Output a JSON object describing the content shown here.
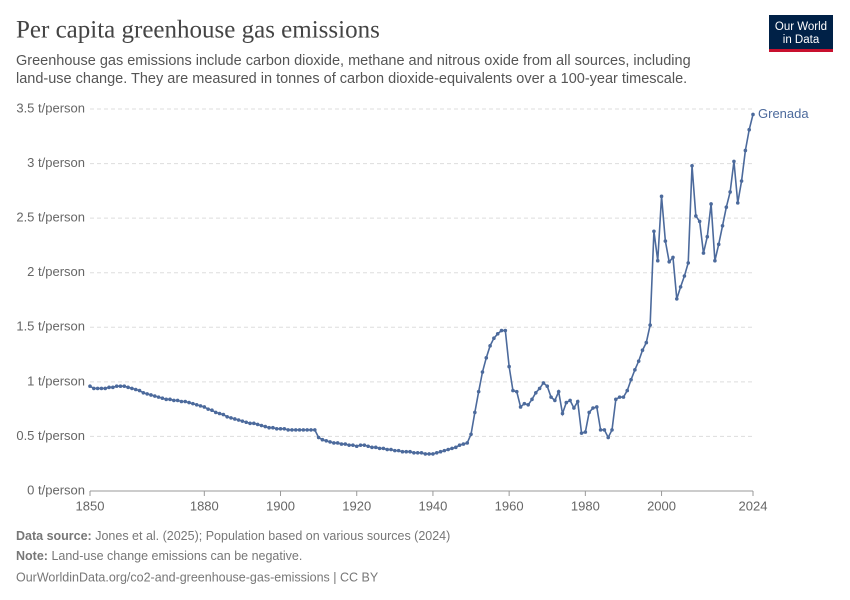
{
  "chart_data": {
    "type": "line",
    "title": "Per capita greenhouse gas emissions",
    "subtitle": [
      "Greenhouse gas emissions include carbon dioxide, methane and nitrous oxide from all sources, including",
      "land-use change. They are measured in tonnes of carbon dioxide-equivalents over a 100-year timescale."
    ],
    "x": [
      1850,
      1851,
      1852,
      1853,
      1854,
      1855,
      1856,
      1857,
      1858,
      1859,
      1860,
      1861,
      1862,
      1863,
      1864,
      1865,
      1866,
      1867,
      1868,
      1869,
      1870,
      1871,
      1872,
      1873,
      1874,
      1875,
      1876,
      1877,
      1878,
      1879,
      1880,
      1881,
      1882,
      1883,
      1884,
      1885,
      1886,
      1887,
      1888,
      1889,
      1890,
      1891,
      1892,
      1893,
      1894,
      1895,
      1896,
      1897,
      1898,
      1899,
      1900,
      1901,
      1902,
      1903,
      1904,
      1905,
      1906,
      1907,
      1908,
      1909,
      1910,
      1911,
      1912,
      1913,
      1914,
      1915,
      1916,
      1917,
      1918,
      1919,
      1920,
      1921,
      1922,
      1923,
      1924,
      1925,
      1926,
      1927,
      1928,
      1929,
      1930,
      1931,
      1932,
      1933,
      1934,
      1935,
      1936,
      1937,
      1938,
      1939,
      1940,
      1941,
      1942,
      1943,
      1944,
      1945,
      1946,
      1947,
      1948,
      1949,
      1950,
      1951,
      1952,
      1953,
      1954,
      1955,
      1956,
      1957,
      1958,
      1959,
      1960,
      1961,
      1962,
      1963,
      1964,
      1965,
      1966,
      1967,
      1968,
      1969,
      1970,
      1971,
      1972,
      1973,
      1974,
      1975,
      1976,
      1977,
      1978,
      1979,
      1980,
      1981,
      1982,
      1983,
      1984,
      1985,
      1986,
      1987,
      1988,
      1989,
      1990,
      1991,
      1992,
      1993,
      1994,
      1995,
      1996,
      1997,
      1998,
      1999,
      2000,
      2001,
      2002,
      2003,
      2004,
      2005,
      2006,
      2007,
      2008,
      2009,
      2010,
      2011,
      2012,
      2013,
      2014,
      2015,
      2016,
      2017,
      2018,
      2019,
      2020,
      2021,
      2022,
      2023,
      2024
    ],
    "series": [
      {
        "name": "Grenada",
        "color": "#4c6a9c",
        "values": [
          0.96,
          0.94,
          0.94,
          0.94,
          0.94,
          0.95,
          0.95,
          0.96,
          0.96,
          0.96,
          0.95,
          0.94,
          0.93,
          0.92,
          0.9,
          0.89,
          0.88,
          0.87,
          0.86,
          0.85,
          0.84,
          0.84,
          0.83,
          0.83,
          0.82,
          0.82,
          0.81,
          0.8,
          0.79,
          0.78,
          0.77,
          0.75,
          0.74,
          0.72,
          0.71,
          0.7,
          0.68,
          0.67,
          0.66,
          0.65,
          0.64,
          0.63,
          0.62,
          0.62,
          0.61,
          0.6,
          0.59,
          0.58,
          0.58,
          0.57,
          0.57,
          0.57,
          0.56,
          0.56,
          0.56,
          0.56,
          0.56,
          0.56,
          0.56,
          0.56,
          0.49,
          0.47,
          0.46,
          0.45,
          0.44,
          0.44,
          0.43,
          0.43,
          0.42,
          0.42,
          0.41,
          0.42,
          0.42,
          0.41,
          0.4,
          0.4,
          0.39,
          0.39,
          0.38,
          0.38,
          0.37,
          0.37,
          0.36,
          0.36,
          0.36,
          0.35,
          0.35,
          0.35,
          0.34,
          0.34,
          0.34,
          0.35,
          0.36,
          0.37,
          0.38,
          0.39,
          0.4,
          0.42,
          0.43,
          0.44,
          0.52,
          0.72,
          0.91,
          1.09,
          1.22,
          1.33,
          1.4,
          1.44,
          1.47,
          1.47,
          1.14,
          0.92,
          0.91,
          0.77,
          0.8,
          0.79,
          0.84,
          0.9,
          0.94,
          0.99,
          0.96,
          0.86,
          0.83,
          0.91,
          0.71,
          0.81,
          0.83,
          0.76,
          0.82,
          0.53,
          0.54,
          0.72,
          0.76,
          0.77,
          0.56,
          0.56,
          0.49,
          0.56,
          0.84,
          0.86,
          0.86,
          0.92,
          1.02,
          1.11,
          1.19,
          1.29,
          1.36,
          1.52,
          2.38,
          2.11,
          2.7,
          2.29,
          2.1,
          2.14,
          1.76,
          1.87,
          1.97,
          2.09,
          2.98,
          2.52,
          2.47,
          2.18,
          2.33,
          2.63,
          2.11,
          2.26,
          2.43,
          2.6,
          2.74,
          3.02,
          2.64,
          2.84,
          3.12,
          3.31,
          3.45
        ]
      }
    ],
    "xlim": [
      1850,
      2024
    ],
    "xticks": [
      1850,
      1880,
      1900,
      1920,
      1940,
      1960,
      1980,
      2000,
      2024
    ],
    "ylim": [
      0,
      3.5
    ],
    "yticks": [
      {
        "value": 0,
        "label": "0 t/person"
      },
      {
        "value": 0.5,
        "label": "0.5 t/person"
      },
      {
        "value": 1,
        "label": "1 t/person"
      },
      {
        "value": 1.5,
        "label": "1.5 t/person"
      },
      {
        "value": 2,
        "label": "2 t/person"
      },
      {
        "value": 2.5,
        "label": "2.5 t/person"
      },
      {
        "value": 3,
        "label": "3 t/person"
      },
      {
        "value": 3.5,
        "label": "3.5 t/person"
      }
    ],
    "grid": true,
    "logo": [
      "Our World",
      "in Data"
    ],
    "source_label": "Data source:",
    "source": "Jones et al. (2025); Population based on various sources (2024)",
    "note_label": "Note:",
    "note": "Land-use change emissions can be negative.",
    "footer": "OurWorldinData.org/co2-and-greenhouse-gas-emissions | CC BY"
  }
}
